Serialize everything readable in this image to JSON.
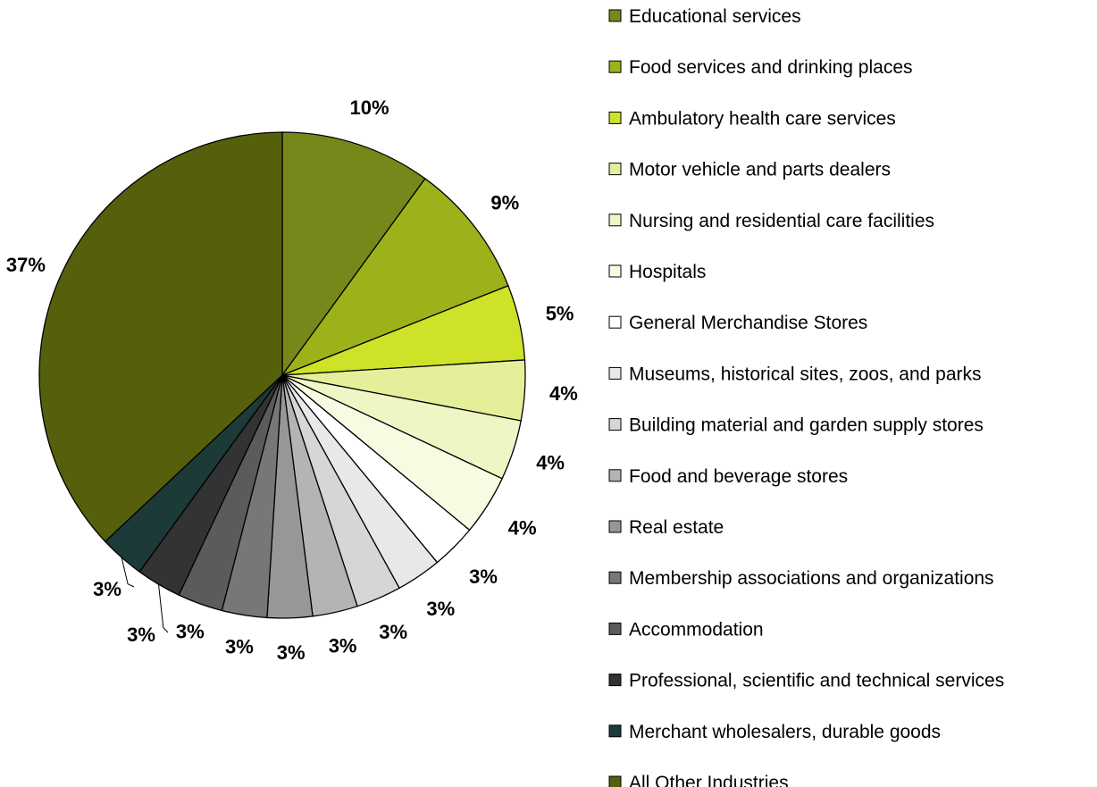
{
  "chart_data": {
    "type": "pie",
    "legend_position": "right",
    "slices": [
      {
        "label": "Educational services",
        "value": 10,
        "value_label": "10%",
        "color": "#77881a"
      },
      {
        "label": "Food services and drinking places",
        "value": 9,
        "value_label": "9%",
        "color": "#9db21a"
      },
      {
        "label": "Ambulatory health care services",
        "value": 5,
        "value_label": "5%",
        "color": "#cde228"
      },
      {
        "label": "Motor vehicle and parts dealers",
        "value": 4,
        "value_label": "4%",
        "color": "#e5ef99"
      },
      {
        "label": "Nursing and residential care facilities",
        "value": 4,
        "value_label": "4%",
        "color": "#eef6c5"
      },
      {
        "label": "Hospitals",
        "value": 4,
        "value_label": "4%",
        "color": "#f7fbe2"
      },
      {
        "label": "General Merchandise Stores",
        "value": 3,
        "value_label": "3%",
        "color": "#ffffff"
      },
      {
        "label": "Museums, historical sites, zoos, and parks",
        "value": 3,
        "value_label": "3%",
        "color": "#e8e8e8"
      },
      {
        "label": "Building material and garden supply stores",
        "value": 3,
        "value_label": "3%",
        "color": "#d6d6d6"
      },
      {
        "label": "Food and beverage stores",
        "value": 3,
        "value_label": "3%",
        "color": "#b4b4b4"
      },
      {
        "label": "Real estate",
        "value": 3,
        "value_label": "3%",
        "color": "#979797"
      },
      {
        "label": "Membership associations and organizations",
        "value": 3,
        "value_label": "3%",
        "color": "#777777"
      },
      {
        "label": "Accommodation",
        "value": 3,
        "value_label": "3%",
        "color": "#5b5b5b"
      },
      {
        "label": "Professional, scientific and technical services",
        "value": 3,
        "value_label": "3%",
        "color": "#333333"
      },
      {
        "label": "Merchant wholesalers, durable goods",
        "value": 3,
        "value_label": "3%",
        "color": "#1c3a38"
      },
      {
        "label": "All Other Industries",
        "value": 37,
        "value_label": "37%",
        "color": "#56600c"
      }
    ]
  }
}
